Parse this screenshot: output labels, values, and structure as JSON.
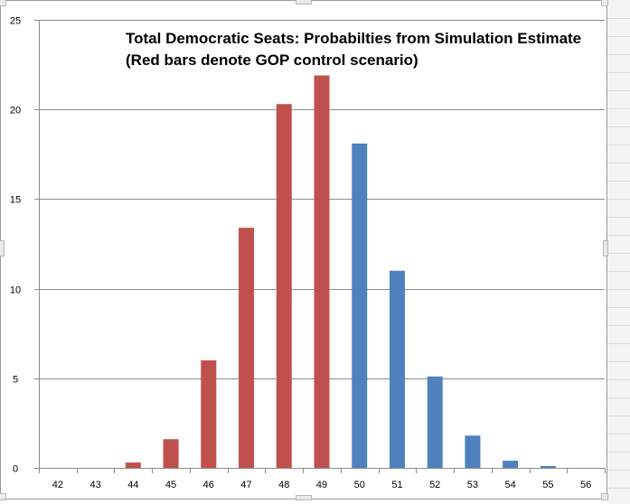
{
  "chart_data": {
    "type": "bar",
    "title_line1": "Total Democratic Seats: Probabilties from Simulation Estimate",
    "title_line2": "(Red bars denote GOP control scenario)",
    "xlabel": "",
    "ylabel": "",
    "categories": [
      "42",
      "43",
      "44",
      "45",
      "46",
      "47",
      "48",
      "49",
      "50",
      "51",
      "52",
      "53",
      "54",
      "55",
      "56"
    ],
    "values": [
      0,
      0,
      0.3,
      1.6,
      6.0,
      13.4,
      20.3,
      21.9,
      18.1,
      11.0,
      5.1,
      1.8,
      0.4,
      0.1,
      0
    ],
    "bar_colors": [
      "#c0504d",
      "#c0504d",
      "#c0504d",
      "#c0504d",
      "#c0504d",
      "#c0504d",
      "#c0504d",
      "#c0504d",
      "#4f81bd",
      "#4f81bd",
      "#4f81bd",
      "#4f81bd",
      "#4f81bd",
      "#4f81bd",
      "#4f81bd"
    ],
    "ylim": [
      0,
      25
    ],
    "yticks": [
      "0",
      "5",
      "10",
      "15",
      "20",
      "25"
    ],
    "ytick_values": [
      0,
      5,
      10,
      15,
      20,
      25
    ],
    "grid": true,
    "colors": {
      "gop": "#c0504d",
      "dem": "#4f81bd",
      "grid": "#8c8c8c",
      "axis": "#8c8c8c",
      "text": "#000000"
    }
  }
}
